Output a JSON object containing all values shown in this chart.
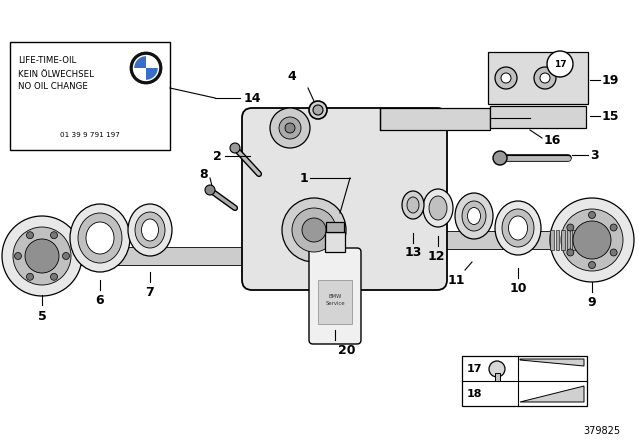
{
  "bg_color": "#ffffff",
  "line_color": "#000000",
  "label_font_size": 9,
  "box_text_line1": "LIFE-TIME-OIL",
  "box_text_line2": "KEIN ÖLWECHSEL",
  "box_text_line3": "NO OIL CHANGE",
  "box_text_line4": "01 39 9 791 197",
  "part_number_id": "379825",
  "bmw_blue": "#3a6ec8",
  "bmw_dark": "#111111",
  "gray_light": "#e8e8e8",
  "gray_mid": "#c0c0c0",
  "gray_dark": "#909090",
  "gray_housing": "#d0d0d0"
}
